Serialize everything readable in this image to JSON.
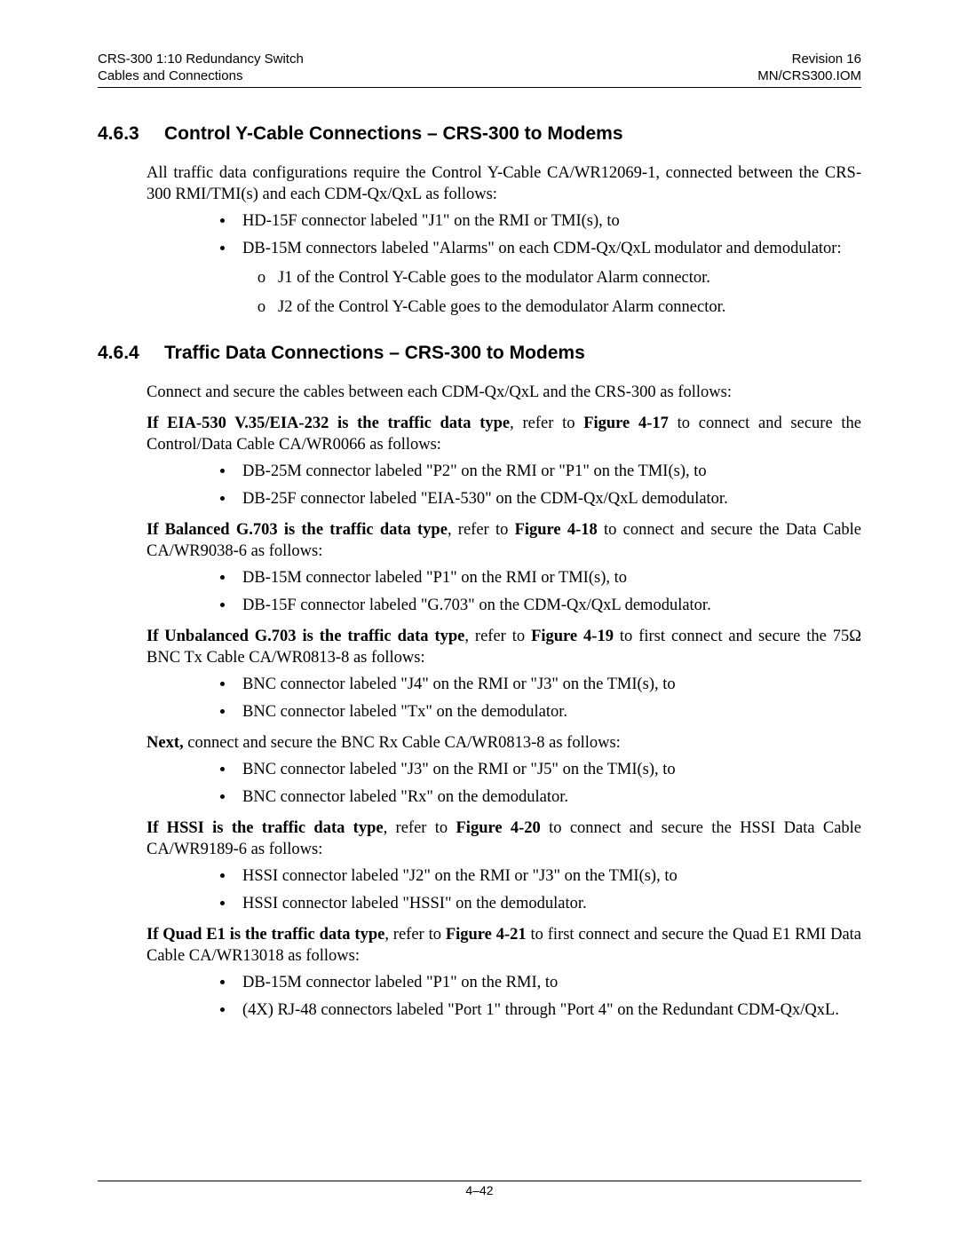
{
  "header": {
    "left_line1": "CRS-300 1:10 Redundancy Switch",
    "left_line2": "Cables and Connections",
    "right_line1": "Revision 16",
    "right_line2": "MN/CRS300.IOM"
  },
  "sec463": {
    "num": "4.6.3",
    "title": "Control Y-Cable Connections – CRS-300 to Modems",
    "intro": "All traffic data configurations require the Control Y-Cable CA/WR12069-1, connected between the CRS-300 RMI/TMI(s) and each CDM-Qx/QxL as follows:",
    "b1": "HD-15F connector labeled \"J1\" on the RMI or TMI(s), to",
    "b2": "DB-15M connectors labeled \"Alarms\" on each CDM-Qx/QxL modulator and demodulator:",
    "s1": "J1 of the Control Y-Cable goes to the modulator Alarm connector.",
    "s2": "J2 of the Control Y-Cable goes to the demodulator Alarm connector."
  },
  "sec464": {
    "num": "4.6.4",
    "title": "Traffic Data Connections – CRS-300 to Modems",
    "intro": "Connect and secure the cables between each CDM-Qx/QxL and the CRS-300 as follows:",
    "eia": {
      "lead_bold": "If EIA-530 V.35/EIA-232 is the traffic data type",
      "lead_rest": ", refer to ",
      "fig": "Figure 4-17",
      "tail": "  to connect and secure the Control/Data Cable CA/WR0066 as follows:",
      "b1": "DB-25M connector labeled \"P2\" on the RMI or \"P1\" on the TMI(s), to",
      "b2": "DB-25F connector labeled \"EIA-530\" on the CDM-Qx/QxL demodulator."
    },
    "bal": {
      "lead_bold": "If Balanced G.703 is the traffic data type",
      "lead_rest": ", refer to ",
      "fig": "Figure 4-18",
      "tail": " to connect and secure the Data Cable CA/WR9038-6 as follows:",
      "b1": "DB-15M connector labeled \"P1\" on the RMI or TMI(s), to",
      "b2": "DB-15F connector labeled \"G.703\" on the CDM-Qx/QxL demodulator."
    },
    "unbal": {
      "lead_bold": "If Unbalanced G.703 is the traffic data type",
      "lead_rest": ", refer to ",
      "fig": "Figure 4-19",
      "tail": " to first connect and secure the 75Ω BNC Tx Cable CA/WR0813-8 as follows:",
      "b1": "BNC connector labeled \"J4\" on the RMI or \"J3\" on the TMI(s), to",
      "b2": "BNC connector labeled \"Tx\" on the demodulator.",
      "next_bold": "Next,",
      "next_rest": " connect and secure the BNC Rx Cable CA/WR0813-8 as follows:",
      "b3": "BNC connector labeled  \"J3\" on the RMI or \"J5\" on the TMI(s), to",
      "b4": "BNC connector labeled \"Rx\" on the demodulator."
    },
    "hssi": {
      "lead_bold": "If HSSI  is the traffic data type",
      "lead_rest": ", refer to ",
      "fig": "Figure 4-20",
      "tail": " to connect and secure the HSSI Data Cable CA/WR9189-6 as follows:",
      "b1": "HSSI connector labeled \"J2\" on the RMI or \"J3\" on the TMI(s), to",
      "b2": "HSSI connector labeled \"HSSI\" on the demodulator."
    },
    "quad": {
      "lead_bold": "If Quad E1 is the traffic data type",
      "lead_rest": ", refer to ",
      "fig": "Figure 4-21",
      "tail": " to first connect and secure the Quad E1 RMI Data Cable CA/WR13018 as follows:",
      "b1": "DB-15M connector labeled \"P1\" on the RMI, to",
      "b2": "(4X) RJ-48 connectors labeled \"Port 1\" through \"Port 4\" on the Redundant CDM-Qx/QxL."
    }
  },
  "footer": {
    "page": "4–42"
  }
}
